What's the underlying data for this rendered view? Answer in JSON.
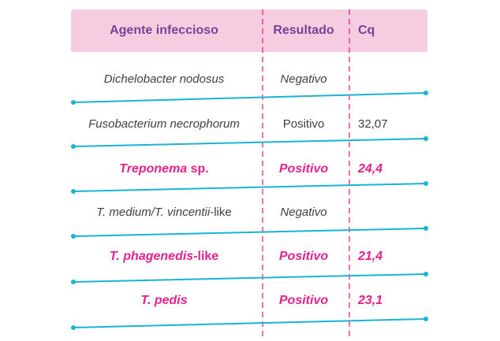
{
  "header": {
    "agent_label": "Agente infeccioso",
    "result_label": "Resultado",
    "cq_label": "Cq"
  },
  "rows": [
    {
      "agent": "Dichelobacter nodosus",
      "agent_suffix": "",
      "result": "Negativo",
      "cq": "",
      "highlight": false
    },
    {
      "agent": "Fusobacterium necrophorum",
      "agent_suffix": "",
      "result": "Positivo",
      "cq": "32,07",
      "highlight": false
    },
    {
      "agent": "Treponema",
      "agent_suffix": " sp.",
      "result": "Positivo",
      "cq": "24,4",
      "highlight": true
    },
    {
      "agent": "T. medium/T. vincentii",
      "agent_suffix": "-like",
      "result": "Negativo",
      "cq": "",
      "highlight": false
    },
    {
      "agent": "T. phagenedis",
      "agent_suffix": "-like",
      "result": "Positivo",
      "cq": "21,4",
      "highlight": true
    },
    {
      "agent": "T. pedis",
      "agent_suffix": "",
      "result": "Positivo",
      "cq": "23,1",
      "highlight": true
    }
  ],
  "colors": {
    "header_bg": "#f6cde0",
    "header_text": "#7a3f98",
    "highlight_text": "#e5228c",
    "normal_text": "#404040",
    "row_line": "#19b3d6",
    "column_divider": "#e5228c"
  }
}
